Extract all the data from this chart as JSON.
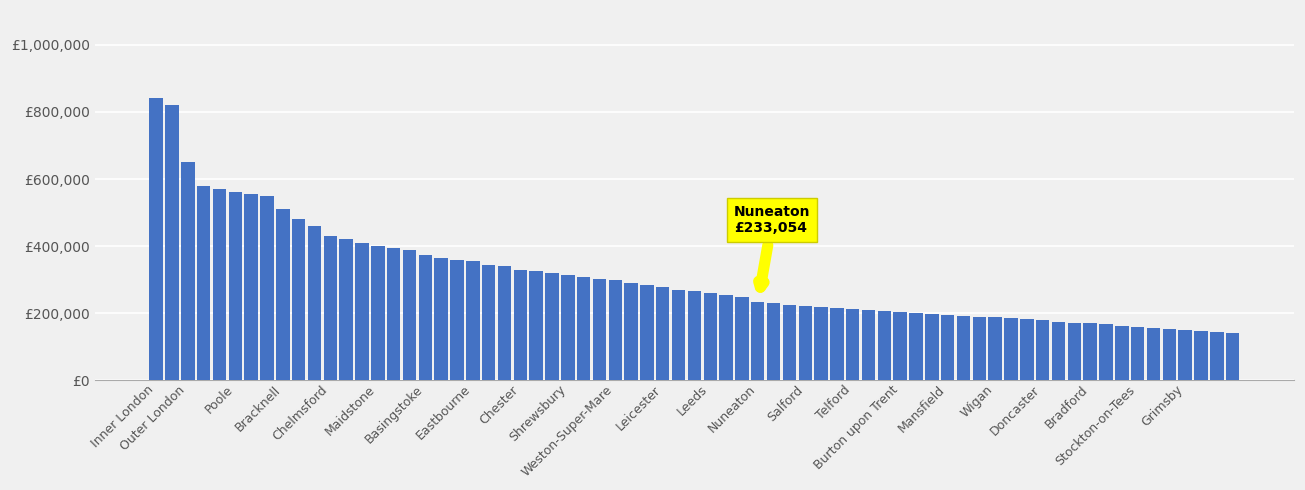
{
  "bar_color": "#4472c4",
  "highlight_bg": "#ffff00",
  "background_color": "#f0f0f0",
  "ylim": [
    0,
    1100000
  ],
  "yticks": [
    0,
    200000,
    400000,
    600000,
    800000,
    1000000
  ],
  "ytick_labels": [
    "£0",
    "£200,000",
    "£400,000",
    "£600,000",
    "£800,000",
    "£1,000,000"
  ],
  "grid_color": "#ffffff",
  "nuneaton_val": 233054,
  "nuneaton_label": "Nuneaton\n£233,054",
  "label_positions": {
    "0": "Inner London",
    "2": "Outer London",
    "5": "Poole",
    "8": "Bracknell",
    "11": "Chelmsford",
    "14": "Maidstone",
    "17": "Basingstoke",
    "20": "Eastbourne",
    "23": "Chester",
    "26": "Shrewsbury",
    "29": "Weston-Super-Mare",
    "32": "Leicester",
    "35": "Leeds",
    "38": "Nuneaton",
    "41": "Salford",
    "44": "Telford",
    "47": "Burton upon Trent",
    "50": "Mansfield",
    "53": "Wigan",
    "56": "Doncaster",
    "59": "Bradford",
    "62": "Stockton-on-Tees",
    "65": "Grimsby"
  },
  "bar_values": [
    840000,
    820000,
    650000,
    580000,
    570000,
    560000,
    555000,
    550000,
    510000,
    480000,
    460000,
    430000,
    420000,
    410000,
    400000,
    395000,
    390000,
    375000,
    365000,
    360000,
    355000,
    345000,
    340000,
    330000,
    325000,
    320000,
    315000,
    308000,
    303000,
    298000,
    290000,
    284000,
    278000,
    270000,
    265000,
    260000,
    255000,
    250000,
    233054,
    230000,
    225000,
    222000,
    218000,
    215000,
    213000,
    210000,
    207000,
    204000,
    201000,
    198000,
    195000,
    192000,
    190000,
    188000,
    185000,
    182000,
    179000,
    175000,
    172000,
    170000,
    167000,
    163000,
    160000,
    157000,
    154000,
    151000,
    148000,
    145000,
    140000
  ]
}
